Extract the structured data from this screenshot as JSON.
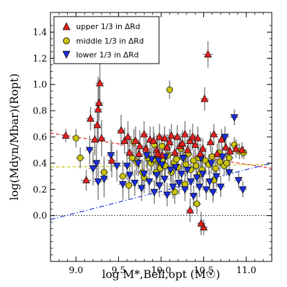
{
  "chart_data": {
    "type": "scatter",
    "xlabel": "log M*,Bell,opt (M☉)",
    "ylabel": "log(Mdyn/Mbar)(Ropt)",
    "xlim": [
      8.7,
      11.3
    ],
    "ylim": [
      -0.35,
      1.55
    ],
    "x_ticks": [
      "9.0",
      "9.5",
      "10.0",
      "10.5",
      "11.0"
    ],
    "y_ticks": [
      "0.0",
      "0.2",
      "0.4",
      "0.6",
      "0.8",
      "1.0",
      "1.2",
      "1.4"
    ],
    "legend_position": "top-left",
    "colors": {
      "upper": "#e8201e",
      "middle": "#c8c20c",
      "lower": "#1a2de0",
      "errorbar": "#888888",
      "trend_upper": "#e8201e",
      "trend_middle": "#c8c20c",
      "trend_lower": "#1a2de0"
    },
    "reference_line": {
      "y": 0.0,
      "style": "dotted"
    },
    "trend_lines": [
      {
        "series": "upper",
        "from": [
          8.7,
          0.63
        ],
        "to": [
          11.3,
          0.36
        ]
      },
      {
        "series": "middle",
        "from": [
          8.7,
          0.37
        ],
        "to": [
          11.3,
          0.39
        ]
      },
      {
        "series": "lower",
        "from": [
          8.7,
          -0.03
        ],
        "to": [
          11.3,
          0.4
        ]
      }
    ],
    "series": [
      {
        "name": "upper 1/3 in ΔRd",
        "marker": "triangle-up",
        "points": [
          [
            8.88,
            0.61,
            0.05,
            0.04
          ],
          [
            9.12,
            0.27,
            0.08,
            0.06
          ],
          [
            9.17,
            0.74,
            0.09,
            0.05
          ],
          [
            9.28,
            1.01,
            0.16,
            0.05
          ],
          [
            9.27,
            0.86,
            0.14,
            0.05
          ],
          [
            9.26,
            0.81,
            0.25,
            0.05
          ],
          [
            9.25,
            0.69,
            0.15,
            0.05
          ],
          [
            9.22,
            0.58,
            0.12,
            0.05
          ],
          [
            9.3,
            0.59,
            0.14,
            0.05
          ],
          [
            9.42,
            0.42,
            0.13,
            0.05
          ],
          [
            9.53,
            0.65,
            0.12,
            0.05
          ],
          [
            9.57,
            0.57,
            0.1,
            0.05
          ],
          [
            9.61,
            0.6,
            0.12,
            0.05
          ],
          [
            9.63,
            0.48,
            0.1,
            0.05
          ],
          [
            9.7,
            0.57,
            0.11,
            0.05
          ],
          [
            9.75,
            0.53,
            0.12,
            0.05
          ],
          [
            9.8,
            0.62,
            0.1,
            0.05
          ],
          [
            9.82,
            0.51,
            0.1,
            0.05
          ],
          [
            9.87,
            0.58,
            0.1,
            0.05
          ],
          [
            9.91,
            0.57,
            0.11,
            0.05
          ],
          [
            9.95,
            0.5,
            0.12,
            0.05
          ],
          [
            9.98,
            0.6,
            0.1,
            0.05
          ],
          [
            10.01,
            0.46,
            0.09,
            0.05
          ],
          [
            10.04,
            0.59,
            0.09,
            0.05
          ],
          [
            10.07,
            0.52,
            0.1,
            0.05
          ],
          [
            10.1,
            0.56,
            0.1,
            0.05
          ],
          [
            10.12,
            0.61,
            0.09,
            0.05
          ],
          [
            10.16,
            0.48,
            0.1,
            0.05
          ],
          [
            10.19,
            0.6,
            0.09,
            0.05
          ],
          [
            10.22,
            0.53,
            0.09,
            0.05
          ],
          [
            10.25,
            0.55,
            0.1,
            0.05
          ],
          [
            10.28,
            0.62,
            0.1,
            0.05
          ],
          [
            10.31,
            0.5,
            0.09,
            0.05
          ],
          [
            10.34,
            0.57,
            0.09,
            0.05
          ],
          [
            10.37,
            0.6,
            0.1,
            0.05
          ],
          [
            10.4,
            0.54,
            0.08,
            0.05
          ],
          [
            10.43,
            0.59,
            0.09,
            0.05
          ],
          [
            10.46,
            0.47,
            0.08,
            0.05
          ],
          [
            10.49,
            0.51,
            0.08,
            0.05
          ],
          [
            10.51,
            0.89,
            0.09,
            0.05
          ],
          [
            10.55,
            1.23,
            0.1,
            0.06
          ],
          [
            10.58,
            0.56,
            0.08,
            0.05
          ],
          [
            10.62,
            0.62,
            0.08,
            0.05
          ],
          [
            10.66,
            0.47,
            0.08,
            0.05
          ],
          [
            10.71,
            0.58,
            0.08,
            0.05
          ],
          [
            10.76,
            0.52,
            0.08,
            0.05
          ],
          [
            10.81,
            0.49,
            0.07,
            0.05
          ],
          [
            10.88,
            0.51,
            0.07,
            0.05
          ],
          [
            10.95,
            0.5,
            0.06,
            0.05
          ],
          [
            10.34,
            0.04,
            0.09,
            0.05
          ],
          [
            10.5,
            -0.09,
            0.06,
            0.05
          ],
          [
            10.47,
            -0.06,
            0.09,
            0.05
          ],
          [
            9.96,
            0.47,
            0.12,
            0.05
          ],
          [
            9.74,
            0.47,
            0.11,
            0.05
          ]
        ]
      },
      {
        "name": "middle 1/3 in ΔRd",
        "marker": "circle",
        "points": [
          [
            9.0,
            0.59,
            0.07,
            0.04
          ],
          [
            9.05,
            0.44,
            0.08,
            0.05
          ],
          [
            9.33,
            0.33,
            0.12,
            0.05
          ],
          [
            9.55,
            0.3,
            0.12,
            0.05
          ],
          [
            9.62,
            0.23,
            0.11,
            0.05
          ],
          [
            9.66,
            0.44,
            0.11,
            0.05
          ],
          [
            9.68,
            0.56,
            0.1,
            0.05
          ],
          [
            9.71,
            0.41,
            0.1,
            0.05
          ],
          [
            9.78,
            0.33,
            0.1,
            0.05
          ],
          [
            9.8,
            0.29,
            0.12,
            0.05
          ],
          [
            9.84,
            0.44,
            0.1,
            0.05
          ],
          [
            9.88,
            0.4,
            0.09,
            0.05
          ],
          [
            9.92,
            0.43,
            0.11,
            0.05
          ],
          [
            9.94,
            0.33,
            0.1,
            0.05
          ],
          [
            9.97,
            0.41,
            0.09,
            0.05
          ],
          [
            9.99,
            0.36,
            0.11,
            0.05
          ],
          [
            10.02,
            0.43,
            0.09,
            0.05
          ],
          [
            10.05,
            0.38,
            0.09,
            0.05
          ],
          [
            10.08,
            0.46,
            0.09,
            0.05
          ],
          [
            10.1,
            0.96,
            0.07,
            0.04
          ],
          [
            10.12,
            0.33,
            0.09,
            0.05
          ],
          [
            10.15,
            0.4,
            0.09,
            0.05
          ],
          [
            10.18,
            0.43,
            0.09,
            0.05
          ],
          [
            10.2,
            0.37,
            0.09,
            0.05
          ],
          [
            10.23,
            0.51,
            0.08,
            0.05
          ],
          [
            10.26,
            0.44,
            0.09,
            0.05
          ],
          [
            10.29,
            0.39,
            0.09,
            0.05
          ],
          [
            10.32,
            0.47,
            0.08,
            0.05
          ],
          [
            10.35,
            0.35,
            0.09,
            0.05
          ],
          [
            10.38,
            0.42,
            0.08,
            0.05
          ],
          [
            10.41,
            0.38,
            0.08,
            0.05
          ],
          [
            10.44,
            0.44,
            0.08,
            0.05
          ],
          [
            10.46,
            0.32,
            0.08,
            0.05
          ],
          [
            10.48,
            0.35,
            0.08,
            0.05
          ],
          [
            10.52,
            0.42,
            0.08,
            0.05
          ],
          [
            10.56,
            0.39,
            0.08,
            0.05
          ],
          [
            10.6,
            0.45,
            0.08,
            0.05
          ],
          [
            10.64,
            0.36,
            0.08,
            0.05
          ],
          [
            10.69,
            0.41,
            0.08,
            0.05
          ],
          [
            10.74,
            0.38,
            0.08,
            0.05
          ],
          [
            10.8,
            0.44,
            0.08,
            0.05
          ],
          [
            10.86,
            0.54,
            0.06,
            0.05
          ],
          [
            10.92,
            0.49,
            0.06,
            0.05
          ],
          [
            10.42,
            0.09,
            0.08,
            0.05
          ],
          [
            10.62,
            0.27,
            0.08,
            0.05
          ],
          [
            10.28,
            0.24,
            0.08,
            0.05
          ],
          [
            9.92,
            0.54,
            0.09,
            0.05
          ],
          [
            10.01,
            0.53,
            0.09,
            0.05
          ],
          [
            10.16,
            0.18,
            0.09,
            0.05
          ],
          [
            10.68,
            0.48,
            0.08,
            0.05
          ],
          [
            10.77,
            0.4,
            0.08,
            0.05
          ],
          [
            10.97,
            0.48,
            0.05,
            0.04
          ]
        ]
      },
      {
        "name": "lower 1/3 in ΔRd",
        "marker": "triangle-down",
        "points": [
          [
            9.16,
            0.5,
            0.11,
            0.05
          ],
          [
            9.2,
            0.36,
            0.13,
            0.05
          ],
          [
            9.24,
            0.4,
            0.14,
            0.05
          ],
          [
            9.26,
            0.26,
            0.14,
            0.05
          ],
          [
            9.33,
            0.28,
            0.14,
            0.05
          ],
          [
            9.41,
            0.46,
            0.12,
            0.05
          ],
          [
            9.48,
            0.38,
            0.12,
            0.05
          ],
          [
            9.55,
            0.24,
            0.12,
            0.05
          ],
          [
            9.6,
            0.38,
            0.11,
            0.05
          ],
          [
            9.63,
            0.31,
            0.1,
            0.05
          ],
          [
            9.69,
            0.25,
            0.1,
            0.05
          ],
          [
            9.73,
            0.4,
            0.1,
            0.05
          ],
          [
            9.77,
            0.21,
            0.1,
            0.05
          ],
          [
            9.8,
            0.32,
            0.1,
            0.05
          ],
          [
            9.86,
            0.26,
            0.1,
            0.05
          ],
          [
            9.89,
            0.43,
            0.09,
            0.05
          ],
          [
            9.92,
            0.18,
            0.09,
            0.05
          ],
          [
            9.95,
            0.31,
            0.09,
            0.05
          ],
          [
            9.98,
            0.23,
            0.09,
            0.05
          ],
          [
            10.01,
            0.39,
            0.09,
            0.05
          ],
          [
            10.04,
            0.28,
            0.09,
            0.05
          ],
          [
            10.07,
            0.16,
            0.09,
            0.05
          ],
          [
            10.11,
            0.35,
            0.09,
            0.05
          ],
          [
            10.14,
            0.22,
            0.09,
            0.05
          ],
          [
            10.17,
            0.37,
            0.09,
            0.05
          ],
          [
            10.21,
            0.25,
            0.09,
            0.05
          ],
          [
            10.24,
            0.32,
            0.09,
            0.05
          ],
          [
            10.28,
            0.2,
            0.09,
            0.05
          ],
          [
            10.31,
            0.35,
            0.08,
            0.05
          ],
          [
            10.35,
            0.26,
            0.08,
            0.05
          ],
          [
            10.38,
            0.15,
            0.08,
            0.05
          ],
          [
            10.42,
            0.29,
            0.08,
            0.05
          ],
          [
            10.45,
            0.22,
            0.08,
            0.05
          ],
          [
            10.49,
            0.32,
            0.08,
            0.05
          ],
          [
            10.53,
            0.2,
            0.08,
            0.05
          ],
          [
            10.57,
            0.26,
            0.08,
            0.05
          ],
          [
            10.61,
            0.18,
            0.08,
            0.05
          ],
          [
            10.65,
            0.3,
            0.08,
            0.05
          ],
          [
            10.7,
            0.22,
            0.08,
            0.05
          ],
          [
            10.75,
            0.6,
            0.08,
            0.05
          ],
          [
            10.8,
            0.33,
            0.07,
            0.05
          ],
          [
            10.86,
            0.75,
            0.06,
            0.05
          ],
          [
            10.91,
            0.27,
            0.06,
            0.05
          ],
          [
            10.96,
            0.2,
            0.06,
            0.05
          ],
          [
            10.47,
            0.44,
            0.08,
            0.05
          ],
          [
            10.26,
            0.44,
            0.09,
            0.05
          ],
          [
            10.05,
            0.45,
            0.09,
            0.05
          ],
          [
            9.97,
            0.42,
            0.09,
            0.05
          ],
          [
            9.83,
            0.46,
            0.1,
            0.05
          ],
          [
            10.72,
            0.45,
            0.08,
            0.05
          ],
          [
            10.59,
            0.4,
            0.08,
            0.05
          ]
        ]
      }
    ]
  }
}
